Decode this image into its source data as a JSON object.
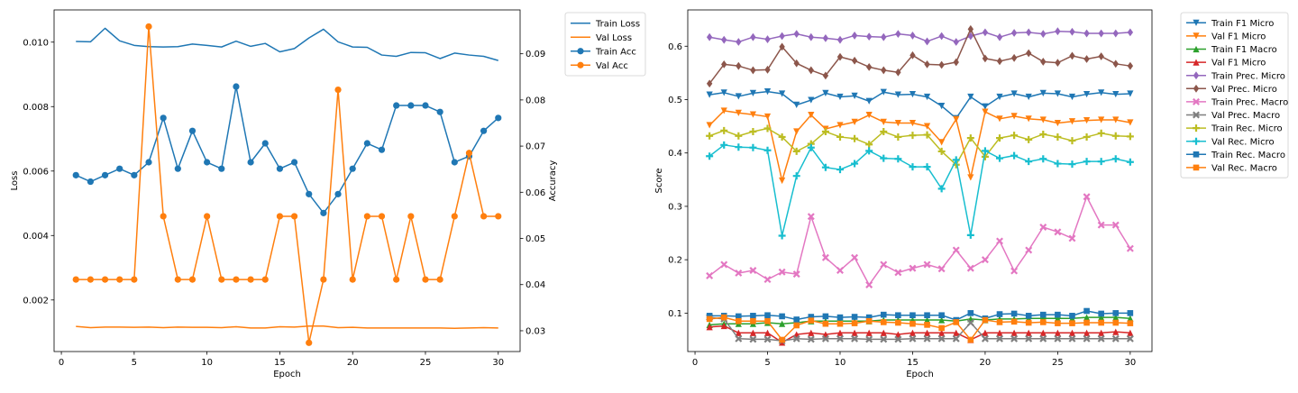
{
  "chart_data": [
    {
      "type": "line",
      "xlabel": "Epoch",
      "ylabel_left": "Loss",
      "ylabel_right": "Accuracy",
      "xlim": [
        -0.5,
        31.5
      ],
      "ylim_left": [
        0.0004,
        0.011
      ],
      "ylim_right": [
        0.0255,
        0.0995
      ],
      "x_ticks": [
        0,
        5,
        10,
        15,
        20,
        25,
        30
      ],
      "x_tick_labels": [
        "0",
        "5",
        "10",
        "15",
        "20",
        "25",
        "30"
      ],
      "y_left_ticks": [
        0.002,
        0.004,
        0.006,
        0.008,
        0.01
      ],
      "y_left_tick_labels": [
        "0.002",
        "0.004",
        "0.006",
        "0.008",
        "0.010"
      ],
      "y_right_ticks": [
        0.03,
        0.04,
        0.05,
        0.06,
        0.07,
        0.08,
        0.09
      ],
      "y_right_tick_labels": [
        "0.03",
        "0.04",
        "0.05",
        "0.06",
        "0.07",
        "0.08",
        "0.09"
      ],
      "legend_position": "outside-top-right",
      "grid": false,
      "x": [
        1,
        2,
        3,
        4,
        5,
        6,
        7,
        8,
        9,
        10,
        11,
        12,
        13,
        14,
        15,
        16,
        17,
        18,
        19,
        20,
        21,
        22,
        23,
        24,
        25,
        26,
        27,
        28,
        29,
        30
      ],
      "series": [
        {
          "name": "Train Loss",
          "axis": "left",
          "color": "#1f77b4",
          "marker": "none",
          "values": [
            0.01002,
            0.01001,
            0.01043,
            0.01004,
            0.0099,
            0.00986,
            0.00985,
            0.00986,
            0.00994,
            0.0099,
            0.00985,
            0.01003,
            0.00987,
            0.00996,
            0.0097,
            0.0098,
            0.01013,
            0.0104,
            0.01001,
            0.00985,
            0.00984,
            0.0096,
            0.00956,
            0.00968,
            0.00967,
            0.00949,
            0.00966,
            0.0096,
            0.00956,
            0.00943
          ]
        },
        {
          "name": "Val Loss",
          "axis": "left",
          "color": "#ff7f0e",
          "marker": "none",
          "values": [
            0.00118,
            0.00114,
            0.00116,
            0.00116,
            0.00115,
            0.00116,
            0.00114,
            0.00116,
            0.00115,
            0.00115,
            0.00114,
            0.00117,
            0.00113,
            0.00113,
            0.00117,
            0.00116,
            0.00119,
            0.00119,
            0.00114,
            0.00115,
            0.00113,
            0.00113,
            0.00113,
            0.00113,
            0.00113,
            0.00113,
            0.00112,
            0.00113,
            0.00114,
            0.00113
          ]
        },
        {
          "name": "Train Acc",
          "axis": "right",
          "color": "#1f77b4",
          "marker": "circle",
          "values": [
            0.0637,
            0.0623,
            0.0637,
            0.0651,
            0.0637,
            0.0665,
            0.0761,
            0.0651,
            0.0733,
            0.0665,
            0.0651,
            0.0829,
            0.0665,
            0.0706,
            0.0651,
            0.0665,
            0.0596,
            0.0555,
            0.0596,
            0.0651,
            0.0706,
            0.0692,
            0.0788,
            0.0788,
            0.0788,
            0.0774,
            0.0665,
            0.0678,
            0.0733,
            0.0761
          ]
        },
        {
          "name": "Val Acc",
          "axis": "right",
          "color": "#ff7f0e",
          "marker": "circle",
          "values": [
            0.0411,
            0.0411,
            0.0411,
            0.0411,
            0.0411,
            0.0959,
            0.0548,
            0.0411,
            0.0411,
            0.0548,
            0.0411,
            0.0411,
            0.0411,
            0.0411,
            0.0548,
            0.0548,
            0.0274,
            0.0411,
            0.0822,
            0.0411,
            0.0548,
            0.0548,
            0.0411,
            0.0548,
            0.0411,
            0.0411,
            0.0548,
            0.0685,
            0.0548,
            0.0548
          ]
        }
      ]
    },
    {
      "type": "line",
      "xlabel": "Epoch",
      "ylabel": "Score",
      "xlim": [
        -0.5,
        31.5
      ],
      "ylim": [
        0.028,
        0.668
      ],
      "x_ticks": [
        0,
        5,
        10,
        15,
        20,
        25,
        30
      ],
      "x_tick_labels": [
        "0",
        "5",
        "10",
        "15",
        "20",
        "25",
        "30"
      ],
      "y_ticks": [
        0.1,
        0.2,
        0.3,
        0.4,
        0.5,
        0.6
      ],
      "y_tick_labels": [
        "0.1",
        "0.2",
        "0.3",
        "0.4",
        "0.5",
        "0.6"
      ],
      "legend_position": "outside-top-right",
      "grid": false,
      "x": [
        1,
        2,
        3,
        4,
        5,
        6,
        7,
        8,
        9,
        10,
        11,
        12,
        13,
        14,
        15,
        16,
        17,
        18,
        19,
        20,
        21,
        22,
        23,
        24,
        25,
        26,
        27,
        28,
        29,
        30
      ],
      "series": [
        {
          "name": "Train F1 Micro",
          "color": "#1f77b4",
          "marker": "tri_down",
          "values": [
            0.509,
            0.513,
            0.506,
            0.512,
            0.515,
            0.511,
            0.49,
            0.499,
            0.512,
            0.505,
            0.507,
            0.497,
            0.514,
            0.509,
            0.51,
            0.505,
            0.488,
            0.465,
            0.505,
            0.487,
            0.505,
            0.511,
            0.505,
            0.512,
            0.511,
            0.505,
            0.51,
            0.513,
            0.51,
            0.511
          ]
        },
        {
          "name": "Val F1 Micro",
          "color": "#ff7f0e",
          "marker": "tri_down",
          "values": [
            0.452,
            0.479,
            0.475,
            0.472,
            0.468,
            0.348,
            0.44,
            0.471,
            0.445,
            0.452,
            0.458,
            0.471,
            0.458,
            0.456,
            0.456,
            0.45,
            0.42,
            0.463,
            0.354,
            0.477,
            0.464,
            0.469,
            0.464,
            0.462,
            0.456,
            0.459,
            0.461,
            0.462,
            0.462,
            0.457
          ]
        },
        {
          "name": "Train F1 Macro",
          "color": "#2ca02c",
          "marker": "tri_up",
          "values": [
            0.078,
            0.08,
            0.08,
            0.08,
            0.082,
            0.08,
            0.082,
            0.085,
            0.085,
            0.085,
            0.085,
            0.085,
            0.087,
            0.087,
            0.087,
            0.087,
            0.087,
            0.085,
            0.089,
            0.087,
            0.089,
            0.089,
            0.09,
            0.09,
            0.09,
            0.09,
            0.092,
            0.092,
            0.092,
            0.09
          ]
        },
        {
          "name": "Val F1 Micro",
          "color": "#d62728",
          "marker": "tri_up",
          "values": [
            0.074,
            0.076,
            0.063,
            0.063,
            0.063,
            0.045,
            0.06,
            0.063,
            0.06,
            0.063,
            0.063,
            0.063,
            0.063,
            0.06,
            0.063,
            0.063,
            0.063,
            0.063,
            0.05,
            0.063,
            0.063,
            0.063,
            0.063,
            0.063,
            0.063,
            0.063,
            0.063,
            0.063,
            0.065,
            0.063
          ]
        },
        {
          "name": "Train Prec. Micro",
          "color": "#9467bd",
          "marker": "diamond",
          "values": [
            0.617,
            0.612,
            0.608,
            0.617,
            0.613,
            0.619,
            0.623,
            0.617,
            0.615,
            0.612,
            0.62,
            0.618,
            0.617,
            0.623,
            0.62,
            0.609,
            0.619,
            0.608,
            0.619,
            0.626,
            0.617,
            0.625,
            0.626,
            0.623,
            0.628,
            0.627,
            0.624,
            0.624,
            0.624,
            0.626
          ]
        },
        {
          "name": "Val Prec. Micro",
          "color": "#8c564b",
          "marker": "diamond",
          "values": [
            0.53,
            0.566,
            0.563,
            0.555,
            0.556,
            0.599,
            0.568,
            0.555,
            0.545,
            0.58,
            0.573,
            0.561,
            0.555,
            0.551,
            0.583,
            0.566,
            0.565,
            0.57,
            0.632,
            0.577,
            0.572,
            0.578,
            0.587,
            0.571,
            0.569,
            0.582,
            0.576,
            0.581,
            0.567,
            0.563
          ]
        },
        {
          "name": "Train Prec. Macro",
          "color": "#e377c2",
          "marker": "x",
          "values": [
            0.17,
            0.191,
            0.175,
            0.18,
            0.163,
            0.177,
            0.173,
            0.281,
            0.204,
            0.18,
            0.204,
            0.153,
            0.191,
            0.176,
            0.184,
            0.191,
            0.183,
            0.218,
            0.184,
            0.2,
            0.235,
            0.179,
            0.218,
            0.261,
            0.252,
            0.24,
            0.318,
            0.265,
            0.265,
            0.221
          ]
        },
        {
          "name": "Val Prec. Macro",
          "color": "#7f7f7f",
          "marker": "x",
          "values": [
            0.092,
            0.089,
            0.052,
            0.051,
            0.051,
            0.048,
            0.052,
            0.051,
            0.052,
            0.052,
            0.052,
            0.051,
            0.051,
            0.051,
            0.052,
            0.052,
            0.052,
            0.052,
            0.082,
            0.052,
            0.052,
            0.052,
            0.052,
            0.052,
            0.052,
            0.052,
            0.052,
            0.052,
            0.052,
            0.052
          ]
        },
        {
          "name": "Train Rec. Micro",
          "color": "#bcbd22",
          "marker": "plus",
          "values": [
            0.432,
            0.442,
            0.432,
            0.44,
            0.446,
            0.43,
            0.403,
            0.417,
            0.44,
            0.43,
            0.427,
            0.416,
            0.44,
            0.43,
            0.433,
            0.434,
            0.403,
            0.378,
            0.428,
            0.393,
            0.428,
            0.433,
            0.425,
            0.435,
            0.43,
            0.423,
            0.43,
            0.437,
            0.432,
            0.431
          ]
        },
        {
          "name": "Val Rec. Micro",
          "color": "#17becf",
          "marker": "plus",
          "values": [
            0.394,
            0.415,
            0.411,
            0.41,
            0.405,
            0.245,
            0.357,
            0.41,
            0.373,
            0.369,
            0.38,
            0.404,
            0.39,
            0.389,
            0.374,
            0.374,
            0.333,
            0.387,
            0.246,
            0.404,
            0.39,
            0.395,
            0.384,
            0.389,
            0.38,
            0.379,
            0.384,
            0.384,
            0.389,
            0.383
          ]
        },
        {
          "name": "Train Rec. Macro",
          "color": "#1f77b4",
          "marker": "square",
          "values": [
            0.095,
            0.095,
            0.094,
            0.095,
            0.096,
            0.094,
            0.088,
            0.093,
            0.094,
            0.092,
            0.093,
            0.092,
            0.097,
            0.096,
            0.096,
            0.096,
            0.096,
            0.087,
            0.1,
            0.09,
            0.098,
            0.099,
            0.095,
            0.097,
            0.097,
            0.095,
            0.104,
            0.099,
            0.1,
            0.1
          ]
        },
        {
          "name": "Val Rec. Macro",
          "color": "#ff7f0e",
          "marker": "square",
          "values": [
            0.089,
            0.092,
            0.085,
            0.085,
            0.085,
            0.05,
            0.077,
            0.086,
            0.08,
            0.08,
            0.081,
            0.085,
            0.083,
            0.082,
            0.08,
            0.078,
            0.072,
            0.083,
            0.05,
            0.087,
            0.083,
            0.084,
            0.082,
            0.083,
            0.081,
            0.081,
            0.082,
            0.082,
            0.082,
            0.081
          ]
        }
      ]
    }
  ]
}
